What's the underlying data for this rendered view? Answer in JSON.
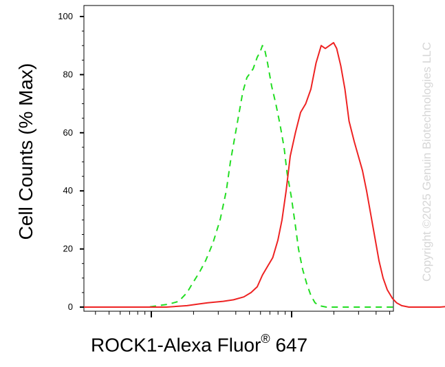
{
  "chart_data": {
    "type": "line",
    "title": "",
    "xlabel_main": "ROCK1-Alexa Fluor",
    "xlabel_sup": "®",
    "xlabel_tail": " 647",
    "ylabel": "Cell Counts (% Max)",
    "x_scale": "log",
    "ylim": [
      0,
      100
    ],
    "y_ticks": [
      0,
      20,
      40,
      60,
      80,
      100
    ],
    "grid": false,
    "legend": "none",
    "series": [
      {
        "color": "#22dd22",
        "style": "dashed",
        "points": [
          [
            0,
            0
          ],
          [
            62,
            0
          ],
          [
            82,
            1
          ],
          [
            92,
            2
          ],
          [
            100,
            5
          ],
          [
            105,
            8
          ],
          [
            112,
            12
          ],
          [
            118,
            16
          ],
          [
            125,
            22
          ],
          [
            132,
            30
          ],
          [
            138,
            40
          ],
          [
            142,
            50
          ],
          [
            146,
            58
          ],
          [
            150,
            66
          ],
          [
            154,
            74
          ],
          [
            158,
            79
          ],
          [
            160,
            80
          ],
          [
            164,
            82
          ],
          [
            168,
            86
          ],
          [
            171,
            88
          ],
          [
            173,
            90
          ],
          [
            175,
            89
          ],
          [
            178,
            84
          ],
          [
            182,
            76
          ],
          [
            186,
            70
          ],
          [
            190,
            63
          ],
          [
            194,
            55
          ],
          [
            197,
            46
          ],
          [
            201,
            38
          ],
          [
            205,
            28
          ],
          [
            208,
            20
          ],
          [
            212,
            13
          ],
          [
            216,
            8
          ],
          [
            220,
            4
          ],
          [
            224,
            1.5
          ],
          [
            228,
            0.5
          ],
          [
            235,
            0
          ],
          [
            300,
            0
          ]
        ]
      },
      {
        "color": "#ee2222",
        "style": "solid",
        "points": [
          [
            0,
            0
          ],
          [
            40,
            0
          ],
          [
            80,
            0
          ],
          [
            100,
            0.5
          ],
          [
            110,
            1
          ],
          [
            120,
            1.5
          ],
          [
            135,
            2
          ],
          [
            145,
            2.5
          ],
          [
            155,
            3.5
          ],
          [
            162,
            5
          ],
          [
            168,
            7
          ],
          [
            173,
            11
          ],
          [
            178,
            14
          ],
          [
            183,
            17
          ],
          [
            188,
            23
          ],
          [
            192,
            30
          ],
          [
            196,
            40
          ],
          [
            200,
            52
          ],
          [
            205,
            60
          ],
          [
            210,
            67
          ],
          [
            215,
            70
          ],
          [
            220,
            75
          ],
          [
            225,
            84
          ],
          [
            230,
            90
          ],
          [
            234,
            89
          ],
          [
            238,
            90
          ],
          [
            242,
            91
          ],
          [
            245,
            89
          ],
          [
            249,
            83
          ],
          [
            253,
            75
          ],
          [
            257,
            64
          ],
          [
            262,
            57
          ],
          [
            266,
            52
          ],
          [
            270,
            47
          ],
          [
            274,
            40
          ],
          [
            278,
            32
          ],
          [
            282,
            24
          ],
          [
            286,
            16
          ],
          [
            290,
            10
          ],
          [
            294,
            6
          ],
          [
            299,
            3
          ],
          [
            303,
            1.5
          ],
          [
            308,
            0.5
          ],
          [
            315,
            0
          ],
          [
            345,
            0
          ],
          [
            355,
            0.3
          ],
          [
            380,
            0
          ]
        ]
      }
    ]
  },
  "watermark": "Copyright ©2025 Genuin Biotechnologies LLC"
}
